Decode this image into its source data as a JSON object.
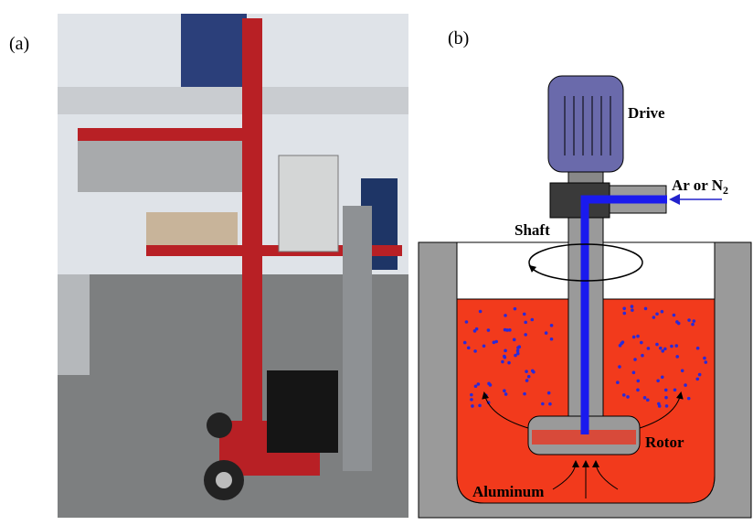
{
  "figure": {
    "panel_a": {
      "label": "(a)"
    },
    "panel_b": {
      "label": "(b)",
      "drive": "Drive",
      "gas": "Ar or N",
      "gas_subscript": "2",
      "shaft": "Shaft",
      "rotor": "Rotor",
      "melt": "Aluminum"
    }
  }
}
